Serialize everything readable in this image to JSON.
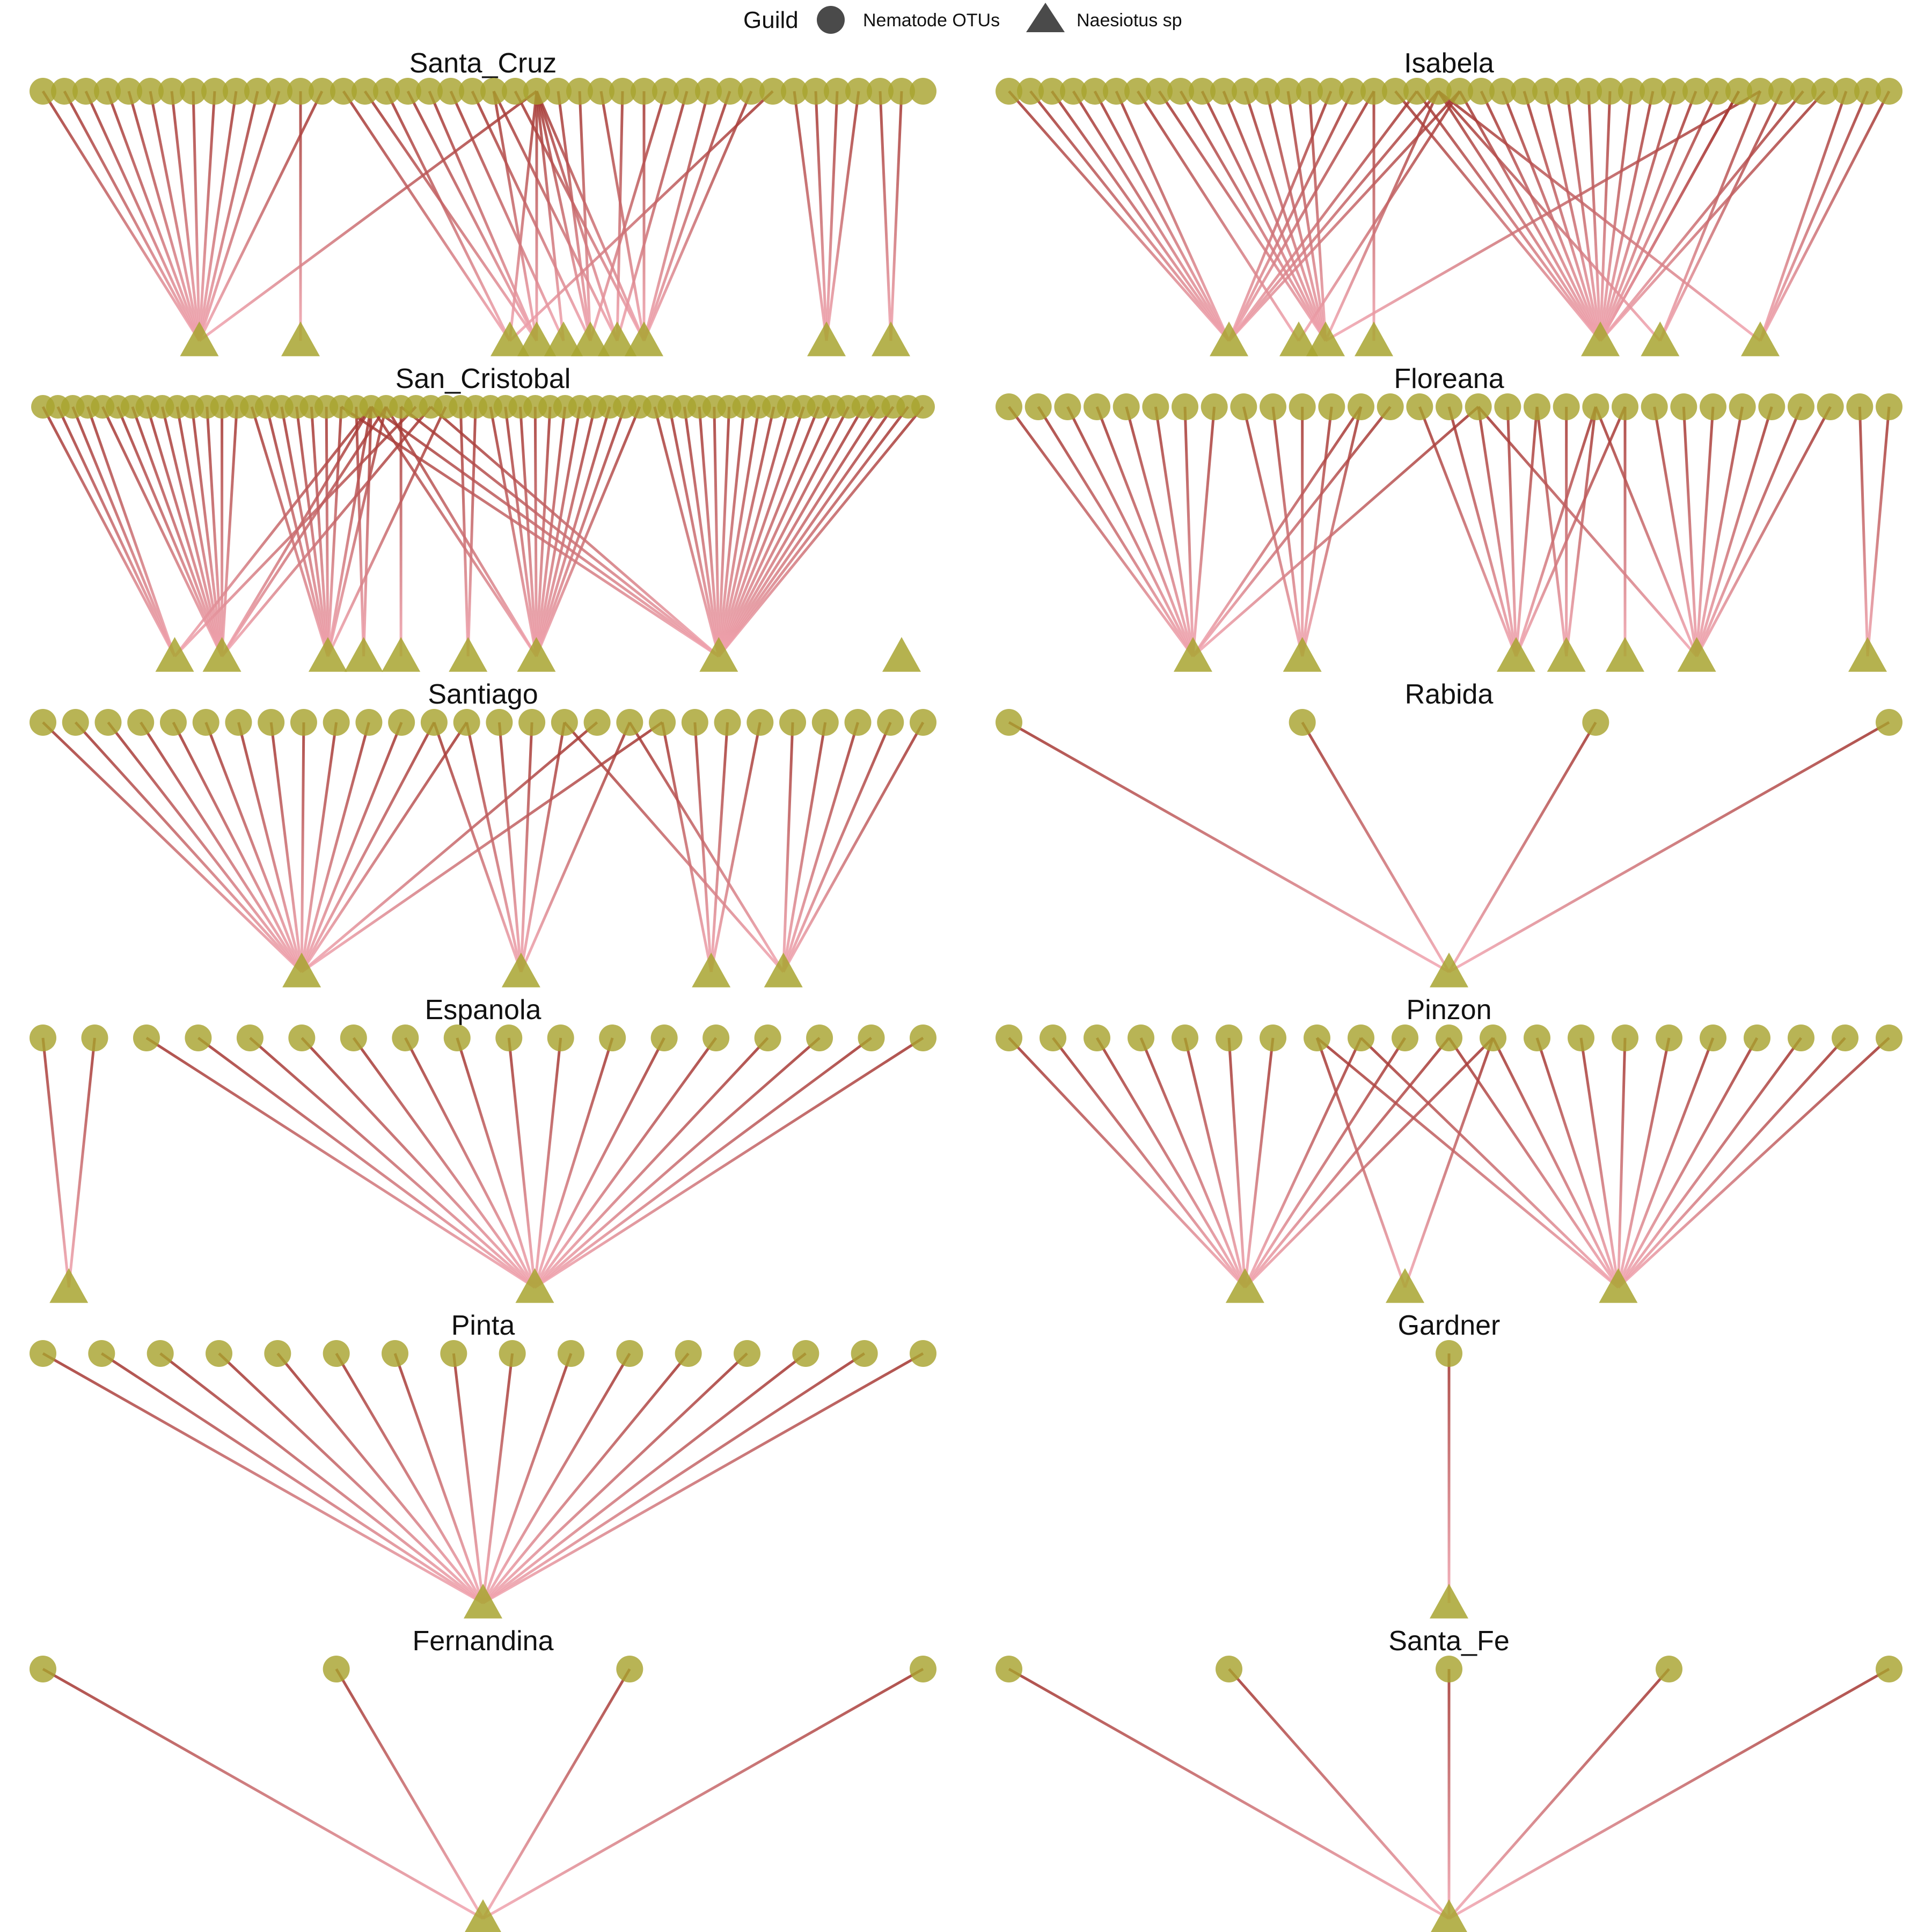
{
  "legend": {
    "title": "Guild",
    "entries": [
      {
        "label": "Nematode OTUs",
        "shape": "circle"
      },
      {
        "label": "Naesiotus sp",
        "shape": "triangle"
      }
    ]
  },
  "colors": {
    "node": "#a8a430",
    "legend_symbol": "#4a4a4a",
    "edge_top": "#a0302a",
    "edge_bottom": "#f2a6b2"
  },
  "chart_data": {
    "type": "bipartite-network",
    "panels": [
      {
        "title": "Santa_Cruz",
        "col": 0,
        "row": 0,
        "otus": 42,
        "snails": 10,
        "edges": [
          [
            0,
            0
          ],
          [
            1,
            0
          ],
          [
            2,
            0
          ],
          [
            3,
            0
          ],
          [
            4,
            0
          ],
          [
            5,
            0
          ],
          [
            6,
            0
          ],
          [
            7,
            0
          ],
          [
            8,
            0
          ],
          [
            9,
            0
          ],
          [
            10,
            0
          ],
          [
            11,
            0
          ],
          [
            12,
            1
          ],
          [
            13,
            0
          ],
          [
            14,
            2
          ],
          [
            15,
            3
          ],
          [
            16,
            2
          ],
          [
            17,
            3
          ],
          [
            18,
            3
          ],
          [
            19,
            4
          ],
          [
            20,
            5
          ],
          [
            21,
            6
          ],
          [
            22,
            7
          ],
          [
            23,
            6
          ],
          [
            24,
            5
          ],
          [
            25,
            5
          ],
          [
            26,
            7
          ],
          [
            27,
            6
          ],
          [
            28,
            7
          ],
          [
            29,
            5
          ],
          [
            30,
            6
          ],
          [
            31,
            7
          ],
          [
            32,
            7
          ],
          [
            33,
            7
          ],
          [
            34,
            2
          ],
          [
            35,
            8
          ],
          [
            36,
            8
          ],
          [
            37,
            8
          ],
          [
            38,
            8
          ],
          [
            39,
            9
          ],
          [
            40,
            9
          ],
          [
            23,
            2
          ],
          [
            23,
            3
          ],
          [
            23,
            4
          ],
          [
            23,
            5
          ],
          [
            23,
            7
          ],
          [
            23,
            0
          ],
          [
            21,
            3
          ]
        ]
      },
      {
        "title": "Isabela",
        "col": 1,
        "row": 0,
        "otus": 42,
        "snails": 7,
        "edges": [
          [
            0,
            0
          ],
          [
            1,
            0
          ],
          [
            2,
            0
          ],
          [
            3,
            0
          ],
          [
            4,
            0
          ],
          [
            5,
            0
          ],
          [
            6,
            1
          ],
          [
            7,
            2
          ],
          [
            8,
            2
          ],
          [
            9,
            2
          ],
          [
            10,
            2
          ],
          [
            11,
            2
          ],
          [
            12,
            2
          ],
          [
            13,
            2
          ],
          [
            14,
            2
          ],
          [
            15,
            0
          ],
          [
            16,
            0
          ],
          [
            17,
            3
          ],
          [
            18,
            4
          ],
          [
            19,
            4
          ],
          [
            20,
            4
          ],
          [
            21,
            4
          ],
          [
            22,
            4
          ],
          [
            23,
            4
          ],
          [
            24,
            4
          ],
          [
            25,
            4
          ],
          [
            26,
            4
          ],
          [
            27,
            4
          ],
          [
            28,
            4
          ],
          [
            29,
            4
          ],
          [
            30,
            4
          ],
          [
            31,
            4
          ],
          [
            32,
            4
          ],
          [
            33,
            4
          ],
          [
            34,
            4
          ],
          [
            35,
            5
          ],
          [
            36,
            5
          ],
          [
            37,
            4
          ],
          [
            38,
            4
          ],
          [
            39,
            6
          ],
          [
            40,
            6
          ],
          [
            41,
            6
          ],
          [
            20,
            0
          ],
          [
            20,
            2
          ],
          [
            20,
            5
          ],
          [
            20,
            6
          ],
          [
            21,
            0
          ],
          [
            21,
            1
          ],
          [
            19,
            0
          ],
          [
            17,
            0
          ],
          [
            35,
            2
          ],
          [
            34,
            4
          ]
        ]
      },
      {
        "title": "San_Cristobal",
        "col": 0,
        "row": 1,
        "otus": 60,
        "snails": 9,
        "edges": [
          [
            0,
            0
          ],
          [
            1,
            0
          ],
          [
            2,
            0
          ],
          [
            3,
            0
          ],
          [
            4,
            1
          ],
          [
            5,
            1
          ],
          [
            6,
            1
          ],
          [
            7,
            1
          ],
          [
            8,
            1
          ],
          [
            9,
            1
          ],
          [
            10,
            1
          ],
          [
            11,
            1
          ],
          [
            12,
            1
          ],
          [
            13,
            1
          ],
          [
            14,
            2
          ],
          [
            15,
            2
          ],
          [
            16,
            2
          ],
          [
            17,
            2
          ],
          [
            18,
            2
          ],
          [
            19,
            2
          ],
          [
            20,
            2
          ],
          [
            21,
            3
          ],
          [
            22,
            3
          ],
          [
            23,
            2
          ],
          [
            24,
            4
          ],
          [
            25,
            0
          ],
          [
            26,
            1
          ],
          [
            27,
            2
          ],
          [
            28,
            5
          ],
          [
            29,
            5
          ],
          [
            30,
            6
          ],
          [
            31,
            6
          ],
          [
            32,
            6
          ],
          [
            33,
            6
          ],
          [
            34,
            6
          ],
          [
            35,
            6
          ],
          [
            36,
            6
          ],
          [
            37,
            6
          ],
          [
            38,
            6
          ],
          [
            39,
            6
          ],
          [
            40,
            6
          ],
          [
            41,
            7
          ],
          [
            42,
            7
          ],
          [
            43,
            7
          ],
          [
            44,
            7
          ],
          [
            45,
            7
          ],
          [
            46,
            7
          ],
          [
            47,
            7
          ],
          [
            48,
            7
          ],
          [
            49,
            7
          ],
          [
            50,
            7
          ],
          [
            51,
            7
          ],
          [
            52,
            7
          ],
          [
            53,
            7
          ],
          [
            54,
            7
          ],
          [
            55,
            7
          ],
          [
            56,
            7
          ],
          [
            57,
            7
          ],
          [
            58,
            7
          ],
          [
            59,
            7
          ],
          [
            22,
            0
          ],
          [
            22,
            1
          ],
          [
            22,
            2
          ],
          [
            22,
            6
          ],
          [
            22,
            7
          ],
          [
            23,
            1
          ],
          [
            23,
            6
          ],
          [
            24,
            7
          ],
          [
            26,
            7
          ],
          [
            20,
            7
          ]
        ]
      },
      {
        "title": "Floreana",
        "col": 1,
        "row": 1,
        "otus": 31,
        "snails": 7,
        "edges": [
          [
            0,
            0
          ],
          [
            1,
            0
          ],
          [
            2,
            0
          ],
          [
            3,
            0
          ],
          [
            4,
            0
          ],
          [
            5,
            0
          ],
          [
            6,
            0
          ],
          [
            7,
            0
          ],
          [
            8,
            1
          ],
          [
            9,
            1
          ],
          [
            10,
            1
          ],
          [
            11,
            1
          ],
          [
            12,
            1
          ],
          [
            13,
            0
          ],
          [
            14,
            2
          ],
          [
            15,
            2
          ],
          [
            16,
            2
          ],
          [
            17,
            2
          ],
          [
            18,
            3
          ],
          [
            19,
            3
          ],
          [
            20,
            3
          ],
          [
            21,
            4
          ],
          [
            22,
            5
          ],
          [
            23,
            5
          ],
          [
            24,
            5
          ],
          [
            25,
            5
          ],
          [
            26,
            5
          ],
          [
            27,
            5
          ],
          [
            28,
            5
          ],
          [
            29,
            6
          ],
          [
            30,
            6
          ],
          [
            12,
            0
          ],
          [
            16,
            0
          ],
          [
            16,
            5
          ],
          [
            18,
            2
          ],
          [
            20,
            2
          ],
          [
            20,
            5
          ],
          [
            21,
            2
          ]
        ]
      },
      {
        "title": "Santiago",
        "col": 0,
        "row": 2,
        "otus": 28,
        "snails": 4,
        "edges": [
          [
            0,
            0
          ],
          [
            1,
            0
          ],
          [
            2,
            0
          ],
          [
            3,
            0
          ],
          [
            4,
            0
          ],
          [
            5,
            0
          ],
          [
            6,
            0
          ],
          [
            7,
            0
          ],
          [
            8,
            0
          ],
          [
            9,
            0
          ],
          [
            10,
            0
          ],
          [
            11,
            0
          ],
          [
            12,
            1
          ],
          [
            13,
            1
          ],
          [
            14,
            1
          ],
          [
            15,
            1
          ],
          [
            16,
            1
          ],
          [
            17,
            0
          ],
          [
            18,
            1
          ],
          [
            19,
            2
          ],
          [
            20,
            2
          ],
          [
            21,
            2
          ],
          [
            22,
            2
          ],
          [
            23,
            3
          ],
          [
            24,
            3
          ],
          [
            25,
            3
          ],
          [
            26,
            3
          ],
          [
            27,
            3
          ],
          [
            16,
            3
          ],
          [
            18,
            3
          ],
          [
            12,
            0
          ],
          [
            13,
            0
          ],
          [
            19,
            0
          ]
        ]
      },
      {
        "title": "Rabida",
        "col": 1,
        "row": 2,
        "otus": 4,
        "snails": 1,
        "edges": [
          [
            0,
            0
          ],
          [
            1,
            0
          ],
          [
            2,
            0
          ],
          [
            3,
            0
          ]
        ]
      },
      {
        "title": "Espanola",
        "col": 0,
        "row": 3,
        "otus": 18,
        "snails": 2,
        "edges": [
          [
            0,
            0
          ],
          [
            1,
            0
          ],
          [
            2,
            1
          ],
          [
            3,
            1
          ],
          [
            4,
            1
          ],
          [
            5,
            1
          ],
          [
            6,
            1
          ],
          [
            7,
            1
          ],
          [
            8,
            1
          ],
          [
            9,
            1
          ],
          [
            10,
            1
          ],
          [
            11,
            1
          ],
          [
            12,
            1
          ],
          [
            13,
            1
          ],
          [
            14,
            1
          ],
          [
            15,
            1
          ],
          [
            16,
            1
          ],
          [
            17,
            1
          ]
        ]
      },
      {
        "title": "Pinzon",
        "col": 1,
        "row": 3,
        "otus": 21,
        "snails": 3,
        "edges": [
          [
            0,
            0
          ],
          [
            1,
            0
          ],
          [
            2,
            0
          ],
          [
            3,
            0
          ],
          [
            4,
            0
          ],
          [
            5,
            0
          ],
          [
            6,
            0
          ],
          [
            7,
            1
          ],
          [
            8,
            2
          ],
          [
            9,
            0
          ],
          [
            10,
            0
          ],
          [
            11,
            2
          ],
          [
            12,
            2
          ],
          [
            13,
            2
          ],
          [
            14,
            2
          ],
          [
            15,
            2
          ],
          [
            16,
            2
          ],
          [
            17,
            2
          ],
          [
            18,
            2
          ],
          [
            19,
            2
          ],
          [
            20,
            2
          ],
          [
            7,
            2
          ],
          [
            8,
            0
          ],
          [
            10,
            2
          ],
          [
            11,
            0
          ],
          [
            11,
            1
          ]
        ]
      },
      {
        "title": "Pinta",
        "col": 0,
        "row": 4,
        "otus": 16,
        "snails": 1,
        "edges": [
          [
            0,
            0
          ],
          [
            1,
            0
          ],
          [
            2,
            0
          ],
          [
            3,
            0
          ],
          [
            4,
            0
          ],
          [
            5,
            0
          ],
          [
            6,
            0
          ],
          [
            7,
            0
          ],
          [
            8,
            0
          ],
          [
            9,
            0
          ],
          [
            10,
            0
          ],
          [
            11,
            0
          ],
          [
            12,
            0
          ],
          [
            13,
            0
          ],
          [
            14,
            0
          ],
          [
            15,
            0
          ]
        ]
      },
      {
        "title": "Gardner",
        "col": 1,
        "row": 4,
        "otus": 1,
        "snails": 1,
        "edges": [
          [
            0,
            0
          ]
        ]
      },
      {
        "title": "Fernandina",
        "col": 0,
        "row": 5,
        "otus": 4,
        "snails": 1,
        "edges": [
          [
            0,
            0
          ],
          [
            1,
            0
          ],
          [
            2,
            0
          ],
          [
            3,
            0
          ]
        ]
      },
      {
        "title": "Santa_Fe",
        "col": 1,
        "row": 5,
        "otus": 5,
        "snails": 1,
        "edges": [
          [
            0,
            0
          ],
          [
            1,
            0
          ],
          [
            2,
            0
          ],
          [
            3,
            0
          ],
          [
            4,
            0
          ]
        ]
      }
    ]
  }
}
